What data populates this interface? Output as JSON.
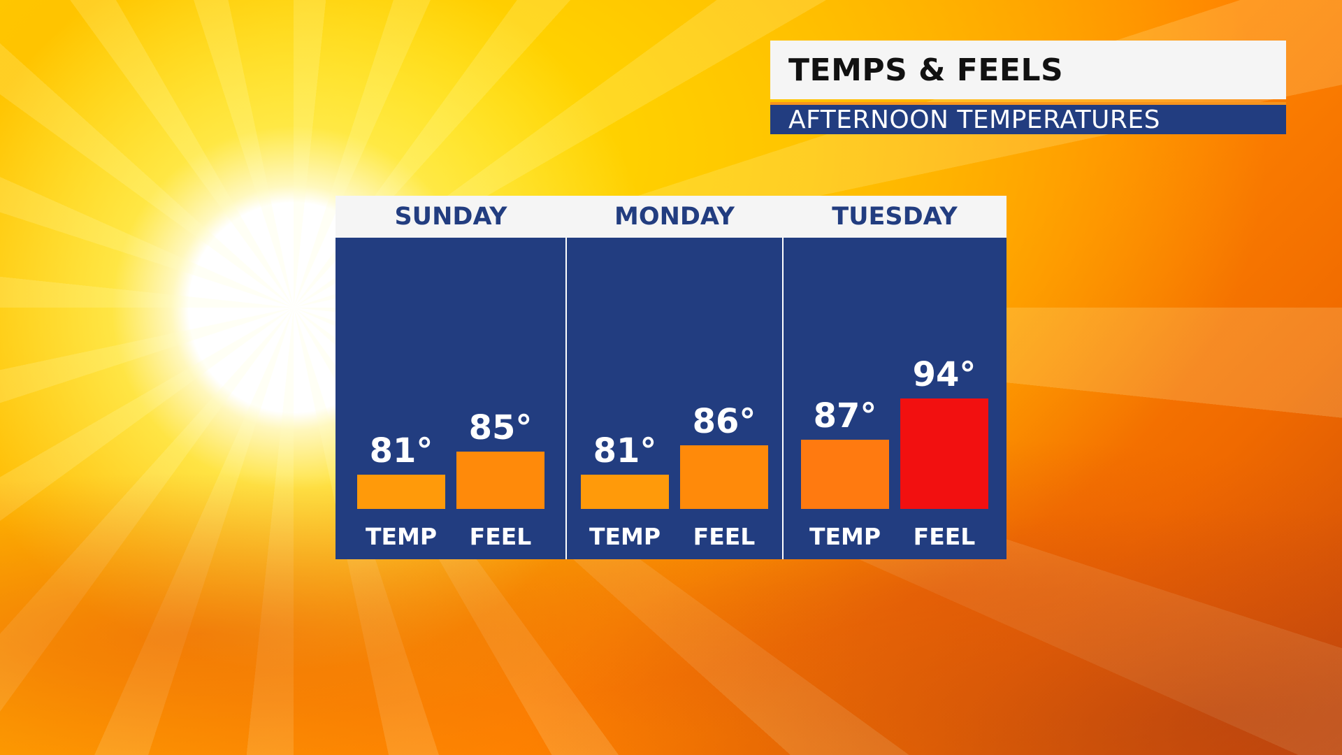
{
  "header": {
    "title": "TEMPS & FEELS",
    "subtitle": "AFTERNOON TEMPERATURES"
  },
  "colors": {
    "panel_blue": "#223d80",
    "header_bg": "#f5f5f5",
    "accent_orange": "#f7941d",
    "temp_low": "#ff9a0a",
    "temp_mid": "#ff8a0a",
    "temp_high": "#ff7a10",
    "feel_extreme": "#f21010"
  },
  "chart_data": {
    "type": "bar",
    "title": "TEMPS & FEELS",
    "subtitle": "AFTERNOON TEMPERATURES",
    "categories": [
      "SUNDAY",
      "MONDAY",
      "TUESDAY"
    ],
    "series_labels": [
      "TEMP",
      "FEEL"
    ],
    "days": [
      {
        "day": "SUNDAY",
        "bars": [
          {
            "label": "TEMP",
            "value": 81,
            "display": "81°",
            "color": "#ff9a0a"
          },
          {
            "label": "FEEL",
            "value": 85,
            "display": "85°",
            "color": "#ff8a0a"
          }
        ]
      },
      {
        "day": "MONDAY",
        "bars": [
          {
            "label": "TEMP",
            "value": 81,
            "display": "81°",
            "color": "#ff9a0a"
          },
          {
            "label": "FEEL",
            "value": 86,
            "display": "86°",
            "color": "#ff8a0a"
          }
        ]
      },
      {
        "day": "TUESDAY",
        "bars": [
          {
            "label": "TEMP",
            "value": 87,
            "display": "87°",
            "color": "#ff7a10"
          },
          {
            "label": "FEEL",
            "value": 94,
            "display": "94°",
            "color": "#f21010"
          }
        ]
      }
    ],
    "ylim": [
      79,
      94
    ],
    "grid": false,
    "legend": "none"
  }
}
